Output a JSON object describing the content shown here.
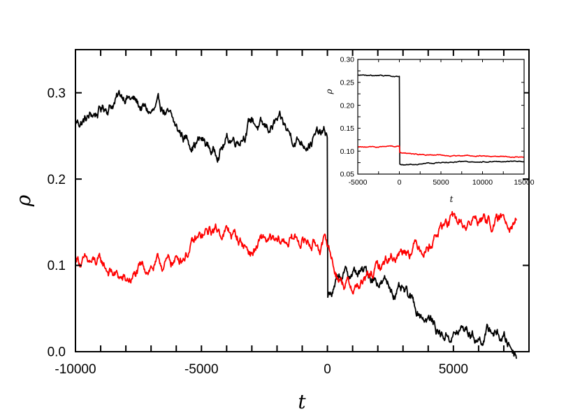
{
  "chart_data": [
    {
      "type": "line",
      "title": "",
      "xlabel": "t",
      "ylabel": "ρ",
      "xlim": [
        -10000,
        8000
      ],
      "ylim": [
        0,
        0.35
      ],
      "x_tick_labels": [
        "-10000",
        "-5000",
        "0",
        "5000"
      ],
      "x_ticks": [
        -10000,
        -5000,
        0,
        5000
      ],
      "y_tick_labels": [
        "0.0",
        "0.1",
        "0.2",
        "0.3"
      ],
      "y_ticks": [
        0.0,
        0.1,
        0.2,
        0.3
      ],
      "grid": false,
      "series": [
        {
          "color": "#000000",
          "x": [
            -10000,
            -9500,
            -9000,
            -8500,
            -8000,
            -7500,
            -7000,
            -6500,
            -6000,
            -5500,
            -5000,
            -4500,
            -4000,
            -3500,
            -3000,
            -2500,
            -2000,
            -1500,
            -1000,
            -500,
            0,
            1,
            250,
            500,
            1000,
            1500,
            2000,
            2500,
            3000,
            3500,
            4000,
            4500,
            5000,
            5500,
            6000,
            6500,
            7000,
            7500
          ],
          "y": [
            0.265,
            0.27,
            0.28,
            0.29,
            0.3,
            0.285,
            0.275,
            0.28,
            0.255,
            0.245,
            0.245,
            0.23,
            0.245,
            0.25,
            0.27,
            0.255,
            0.265,
            0.25,
            0.245,
            0.25,
            0.25,
            0.06,
            0.07,
            0.085,
            0.09,
            0.09,
            0.085,
            0.075,
            0.065,
            0.05,
            0.04,
            0.02,
            0.02,
            0.025,
            0.015,
            0.025,
            0.015,
            0.0
          ]
        },
        {
          "color": "#ff0000",
          "x": [
            -10000,
            -9500,
            -9000,
            -8500,
            -8000,
            -7500,
            -7000,
            -6500,
            -6000,
            -5500,
            -5000,
            -4500,
            -4000,
            -3500,
            -3000,
            -2500,
            -2000,
            -1500,
            -1000,
            -500,
            0,
            250,
            500,
            1000,
            1500,
            2000,
            2500,
            3000,
            3500,
            4000,
            4500,
            5000,
            5500,
            6000,
            6500,
            7000,
            7500
          ],
          "y": [
            0.11,
            0.1,
            0.1,
            0.09,
            0.08,
            0.09,
            0.1,
            0.1,
            0.105,
            0.12,
            0.13,
            0.14,
            0.14,
            0.13,
            0.115,
            0.13,
            0.12,
            0.13,
            0.13,
            0.125,
            0.125,
            0.1,
            0.085,
            0.075,
            0.08,
            0.095,
            0.11,
            0.12,
            0.125,
            0.125,
            0.145,
            0.15,
            0.145,
            0.155,
            0.15,
            0.15,
            0.16
          ]
        }
      ]
    },
    {
      "type": "line",
      "title": "",
      "xlabel": "t",
      "ylabel": "ρ",
      "xlim": [
        -5000,
        15000
      ],
      "ylim": [
        0.05,
        0.3
      ],
      "x_tick_labels": [
        "-5000",
        "0",
        "5000",
        "10000",
        "15000"
      ],
      "x_ticks": [
        -5000,
        0,
        5000,
        10000,
        15000
      ],
      "y_tick_labels": [
        "0.05",
        "0.10",
        "0.15",
        "0.20",
        "0.25",
        "0.30"
      ],
      "y_ticks": [
        0.05,
        0.1,
        0.15,
        0.2,
        0.25,
        0.3
      ],
      "grid": false,
      "series": [
        {
          "color": "#000000",
          "x": [
            -5000,
            -2500,
            -500,
            0,
            1,
            500,
            2500,
            5000,
            7500,
            10000,
            12500,
            15000
          ],
          "y": [
            0.266,
            0.265,
            0.263,
            0.263,
            0.072,
            0.07,
            0.073,
            0.075,
            0.076,
            0.077,
            0.077,
            0.079
          ]
        },
        {
          "color": "#ff0000",
          "x": [
            -5000,
            -2500,
            -500,
            0,
            1,
            500,
            2500,
            5000,
            7500,
            10000,
            12500,
            15000
          ],
          "y": [
            0.108,
            0.109,
            0.11,
            0.111,
            0.097,
            0.095,
            0.093,
            0.091,
            0.09,
            0.09,
            0.089,
            0.087
          ]
        }
      ]
    }
  ]
}
